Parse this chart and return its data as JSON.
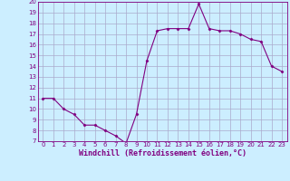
{
  "hours": [
    0,
    1,
    2,
    3,
    4,
    5,
    6,
    7,
    8,
    9,
    10,
    11,
    12,
    13,
    14,
    15,
    16,
    17,
    18,
    19,
    20,
    21,
    22,
    23
  ],
  "values": [
    11.0,
    11.0,
    10.0,
    9.5,
    8.5,
    8.5,
    8.0,
    7.5,
    6.8,
    9.5,
    14.5,
    17.3,
    17.5,
    17.5,
    17.5,
    19.8,
    17.5,
    17.3,
    17.3,
    17.0,
    16.5,
    16.3,
    14.0,
    13.5
  ],
  "line_color": "#800080",
  "marker": "D",
  "marker_size": 1.5,
  "bg_color": "#cceeff",
  "grid_color": "#aaaacc",
  "xlabel": "Windchill (Refroidissement éolien,°C)",
  "ylim": [
    7,
    20
  ],
  "xlim": [
    -0.5,
    23.5
  ],
  "yticks": [
    7,
    8,
    9,
    10,
    11,
    12,
    13,
    14,
    15,
    16,
    17,
    18,
    19,
    20
  ],
  "xticks": [
    0,
    1,
    2,
    3,
    4,
    5,
    6,
    7,
    8,
    9,
    10,
    11,
    12,
    13,
    14,
    15,
    16,
    17,
    18,
    19,
    20,
    21,
    22,
    23
  ],
  "tick_fontsize": 5.0,
  "xlabel_fontsize": 6.0,
  "line_width": 0.8
}
